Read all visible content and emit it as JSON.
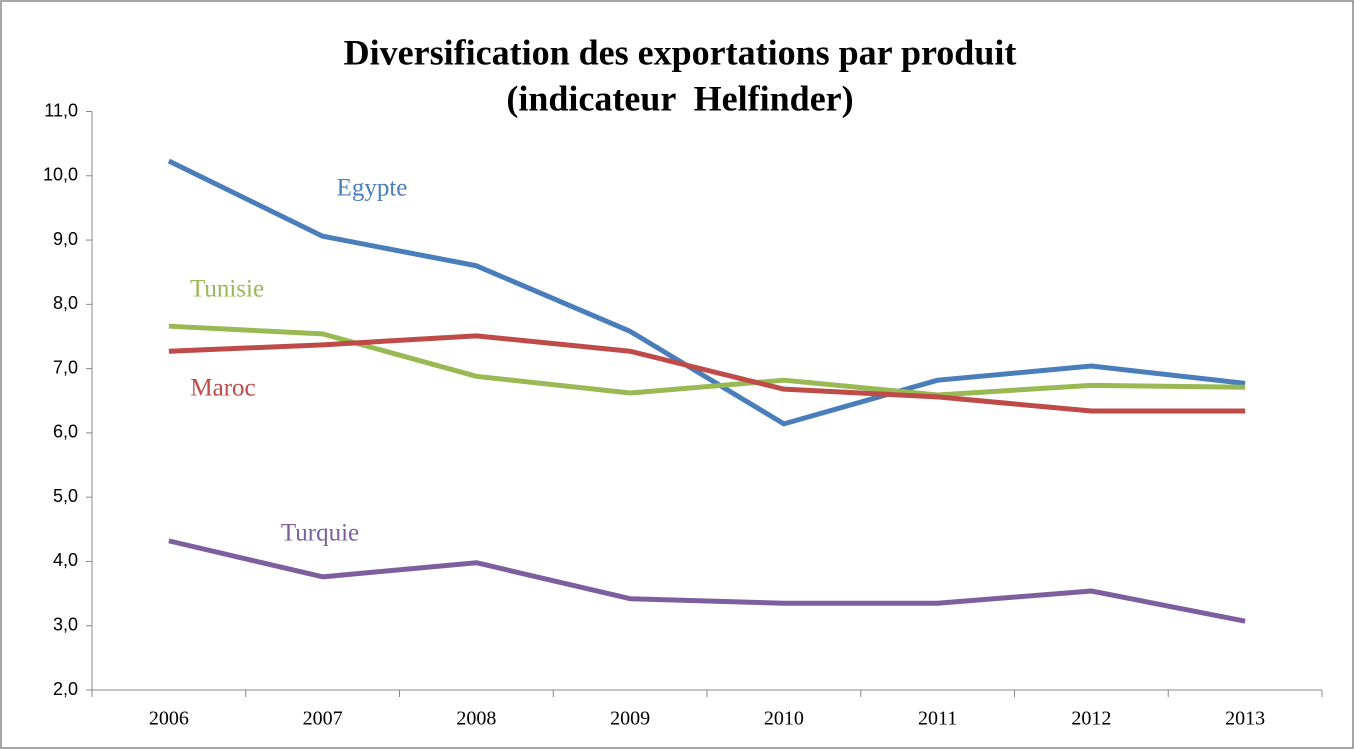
{
  "chart_data": {
    "type": "line",
    "title": [
      "Diversification des exportations par produit",
      "(indicateur  Helfinder)"
    ],
    "categories": [
      "2006",
      "2007",
      "2008",
      "2009",
      "2010",
      "2011",
      "2012",
      "2013"
    ],
    "series": [
      {
        "name": "Egypte",
        "color": "#4a7ebb",
        "values": [
          10.23,
          9.06,
          8.6,
          7.58,
          6.14,
          6.82,
          7.04,
          6.77
        ]
      },
      {
        "name": "Tunisie",
        "color": "#98b954",
        "values": [
          7.66,
          7.54,
          6.88,
          6.62,
          6.82,
          6.59,
          6.74,
          6.71
        ]
      },
      {
        "name": "Maroc",
        "color": "#be4b48",
        "values": [
          7.27,
          7.37,
          7.51,
          7.27,
          6.68,
          6.56,
          6.34,
          6.34
        ]
      },
      {
        "name": "Turquie",
        "color": "#7d5fa0",
        "values": [
          4.32,
          3.76,
          3.98,
          3.42,
          3.35,
          3.35,
          3.54,
          3.07
        ]
      }
    ],
    "ylim": [
      2,
      11
    ],
    "yticks": [
      {
        "value": 2,
        "label": "2,0"
      },
      {
        "value": 3,
        "label": "3,0"
      },
      {
        "value": 4,
        "label": "4,0"
      },
      {
        "value": 5,
        "label": "5,0"
      },
      {
        "value": 6,
        "label": "6,0"
      },
      {
        "value": 7,
        "label": "7,0"
      },
      {
        "value": 8,
        "label": "8,0"
      },
      {
        "value": 9,
        "label": "9,0"
      },
      {
        "value": 10,
        "label": "10,0"
      },
      {
        "value": 11,
        "label": "11,0"
      }
    ],
    "grid": false
  }
}
